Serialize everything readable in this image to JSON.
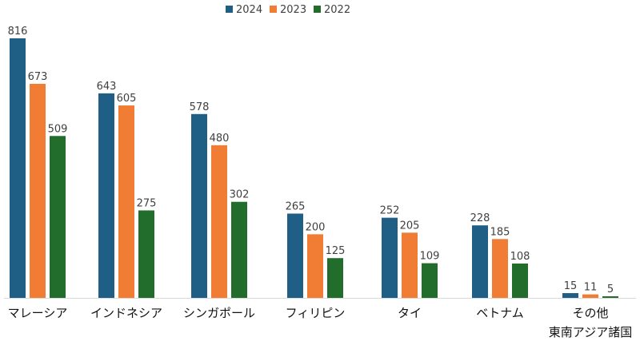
{
  "chart_data": {
    "type": "bar",
    "title": "",
    "xlabel": "",
    "ylabel": "",
    "categories": [
      "マレーシア",
      "インドネシア",
      "シンガポール",
      "フィリピン",
      "タイ",
      "ベトナム",
      "その他\n東南アジア諸国"
    ],
    "series": [
      {
        "name": "2024",
        "color": "#1f5f86",
        "values": [
          816,
          643,
          578,
          265,
          252,
          228,
          15
        ]
      },
      {
        "name": "2023",
        "color": "#f07d33",
        "values": [
          673,
          605,
          480,
          200,
          205,
          185,
          11
        ]
      },
      {
        "name": "2022",
        "color": "#226d2c",
        "values": [
          509,
          275,
          302,
          125,
          109,
          108,
          5
        ]
      }
    ],
    "ylim": [
      0,
      816
    ],
    "legend_position": "top-center",
    "grid": false,
    "data_labels": true
  }
}
